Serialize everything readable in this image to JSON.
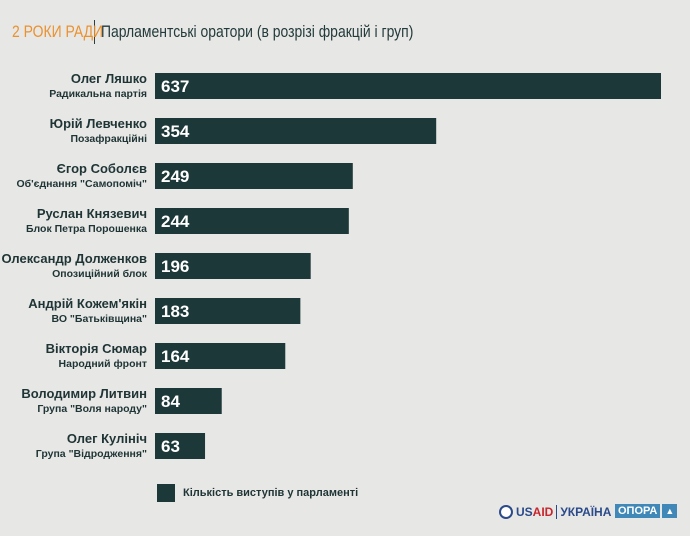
{
  "header": {
    "brand": "2 РОКИ РАДИ",
    "title": "Парламентські оратори (в розрізі фракцій і груп)"
  },
  "chart_data": {
    "type": "bar",
    "orientation": "horizontal",
    "title": "Парламентські оратори (в розрізі фракцій і груп)",
    "categories": [
      "Олег Ляшко",
      "Юрій Левченко",
      "Єгор Соболєв",
      "Руслан Князевич",
      "Олександр Долженков",
      "Андрій Кожем'якін",
      "Вікторія Сюмар",
      "Володимир Литвин",
      "Олег Кулініч"
    ],
    "subtitles": [
      "Радикальна партія",
      "Позафракційні",
      "Об'єднання \"Самопоміч\"",
      "Блок Петра Порошенка",
      "Опозиційний блок",
      "ВО \"Батьківщина\"",
      "Народний фронт",
      "Група \"Воля народу\"",
      "Група \"Відродження\""
    ],
    "series": [
      {
        "name": "Кількість виступів у парламенті",
        "values": [
          637,
          354,
          249,
          244,
          196,
          183,
          164,
          84,
          63
        ]
      }
    ],
    "xlim": [
      0,
      637
    ],
    "legend": "bottom-left",
    "bar_color": "#1d3838"
  },
  "footer": {
    "usaid_us": "US",
    "usaid_aid": "AID",
    "usaid_country": "УКРАЇНА",
    "opora": "ОПОРА",
    "opora_icon": "▲"
  }
}
